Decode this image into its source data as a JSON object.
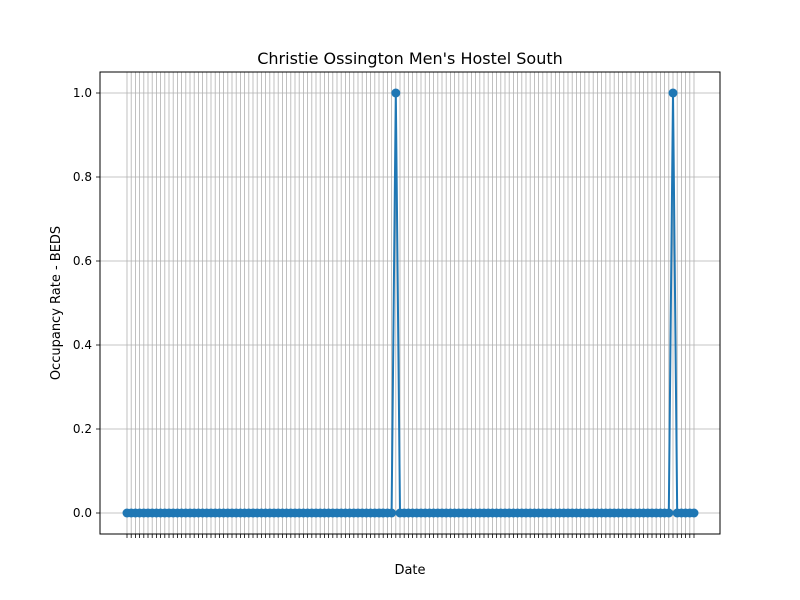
{
  "chart_data": {
    "type": "line",
    "title": "Christie Ossington Men's Hostel South",
    "xlabel": "Date",
    "ylabel": "Occupancy Rate - BEDS",
    "ylim": [
      -0.05,
      1.05
    ],
    "y_ticks": [
      0.0,
      0.2,
      0.4,
      0.6,
      0.8,
      1.0
    ],
    "y_tick_labels": [
      "0.0",
      "0.2",
      "0.4",
      "0.6",
      "0.8",
      "1.0"
    ],
    "grid": true,
    "num_points": 136,
    "series": [
      {
        "color": "#1f77b4",
        "marker": "circle",
        "values": [
          0,
          0,
          0,
          0,
          0,
          0,
          0,
          0,
          0,
          0,
          0,
          0,
          0,
          0,
          0,
          0,
          0,
          0,
          0,
          0,
          0,
          0,
          0,
          0,
          0,
          0,
          0,
          0,
          0,
          0,
          0,
          0,
          0,
          0,
          0,
          0,
          0,
          0,
          0,
          0,
          0,
          0,
          0,
          0,
          0,
          0,
          0,
          0,
          0,
          0,
          0,
          0,
          0,
          0,
          0,
          0,
          0,
          0,
          0,
          0,
          0,
          0,
          0,
          0,
          1,
          0,
          0,
          0,
          0,
          0,
          0,
          0,
          0,
          0,
          0,
          0,
          0,
          0,
          0,
          0,
          0,
          0,
          0,
          0,
          0,
          0,
          0,
          0,
          0,
          0,
          0,
          0,
          0,
          0,
          0,
          0,
          0,
          0,
          0,
          0,
          0,
          0,
          0,
          0,
          0,
          0,
          0,
          0,
          0,
          0,
          0,
          0,
          0,
          0,
          0,
          0,
          0,
          0,
          0,
          0,
          0,
          0,
          0,
          0,
          0,
          0,
          0,
          0,
          0,
          0,
          1,
          0,
          0,
          0,
          0,
          0
        ]
      }
    ]
  }
}
